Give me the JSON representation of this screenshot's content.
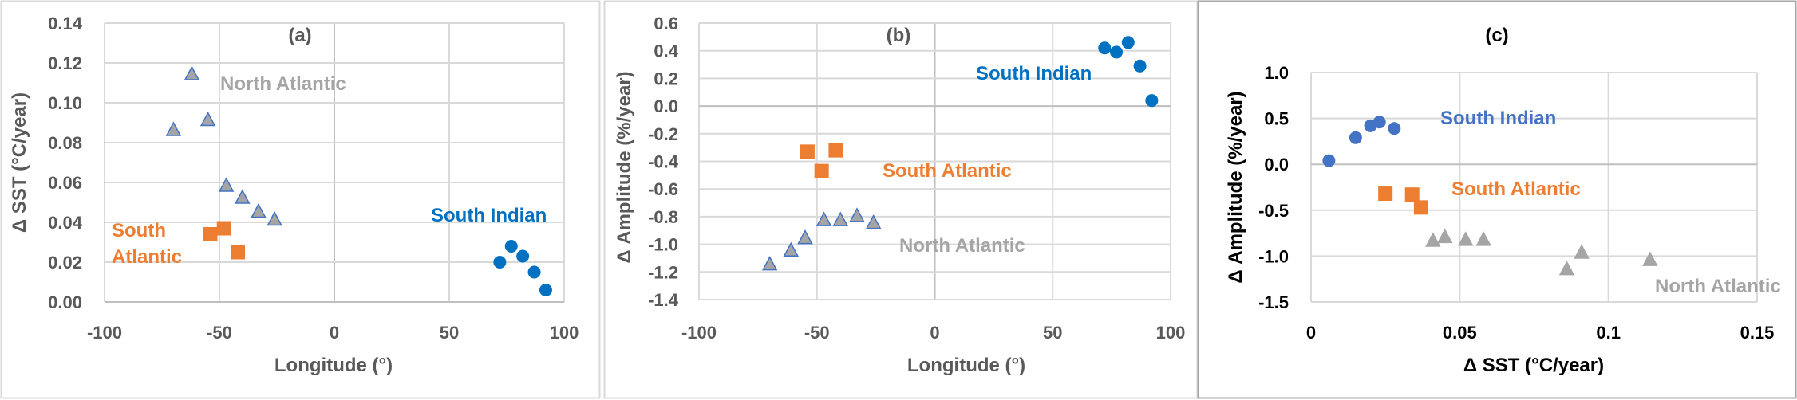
{
  "chart_data": [
    {
      "type": "scatter",
      "title": "(a)",
      "xlabel": "Longitude (°)",
      "ylabel": "Δ SST (°C/year)",
      "xlim": [
        -100,
        100
      ],
      "ylim": [
        0,
        0.14
      ],
      "grid": true,
      "xticks": [
        -100,
        -50,
        0,
        50,
        100
      ],
      "xtick_labels": [
        "-100",
        "-50",
        "0",
        "50",
        "100"
      ],
      "yticks": [
        0,
        0.02,
        0.04,
        0.06,
        0.08,
        0.1,
        0.12,
        0.14
      ],
      "ytick_labels": [
        "0.00",
        "0.02",
        "0.04",
        "0.06",
        "0.08",
        "0.10",
        "0.12",
        "0.14"
      ],
      "series": [
        {
          "name": "North Atlantic",
          "marker": "triangle",
          "color": "#a5a5a5",
          "edge": "#4472c4",
          "x": [
            -62,
            -70,
            -55,
            -47,
            -40,
            -33,
            -26
          ],
          "y": [
            0.114,
            0.086,
            0.091,
            0.058,
            0.052,
            0.045,
            0.041
          ]
        },
        {
          "name": "South Atlantic",
          "marker": "square",
          "color": "#ed7d31",
          "edge": "#ed7d31",
          "x": [
            -54,
            -48,
            -42
          ],
          "y": [
            0.034,
            0.037,
            0.025
          ]
        },
        {
          "name": "South Indian",
          "marker": "circle",
          "color": "#0070c0",
          "edge": "#0070c0",
          "x": [
            72,
            77,
            82,
            87,
            92
          ],
          "y": [
            0.02,
            0.028,
            0.023,
            0.015,
            0.006
          ]
        }
      ],
      "annotations": [
        {
          "text": "North Atlantic",
          "color": "#a5a5a5"
        },
        {
          "text": "South",
          "color": "#ed7d31"
        },
        {
          "text": "Atlantic",
          "color": "#ed7d31"
        },
        {
          "text": "South Indian",
          "color": "#0070c0"
        }
      ]
    },
    {
      "type": "scatter",
      "title": "(b)",
      "xlabel": "Longitude (°)",
      "ylabel": "Δ Amplitude (%/year)",
      "xlim": [
        -100,
        100
      ],
      "ylim": [
        -1.4,
        0.6
      ],
      "grid": true,
      "xticks": [
        -100,
        -50,
        0,
        50,
        100
      ],
      "xtick_labels": [
        "-100",
        "-50",
        "0",
        "50",
        "100"
      ],
      "yticks": [
        -1.4,
        -1.2,
        -1.0,
        -0.8,
        -0.6,
        -0.4,
        -0.2,
        0,
        0.2,
        0.4,
        0.6
      ],
      "ytick_labels": [
        "-1.4",
        "-1.2",
        "-1.0",
        "-0.8",
        "-0.6",
        "-0.4",
        "-0.2",
        "0.0",
        "0.2",
        "0.4",
        "0.6"
      ],
      "series": [
        {
          "name": "North Atlantic",
          "marker": "triangle",
          "color": "#a5a5a5",
          "edge": "#4472c4",
          "x": [
            -70,
            -61,
            -55,
            -47,
            -40,
            -33,
            -26
          ],
          "y": [
            -1.15,
            -1.05,
            -0.96,
            -0.83,
            -0.83,
            -0.8,
            -0.85
          ]
        },
        {
          "name": "South Atlantic",
          "marker": "square",
          "color": "#ed7d31",
          "edge": "#ed7d31",
          "x": [
            -54,
            -48,
            -42
          ],
          "y": [
            -0.33,
            -0.47,
            -0.32
          ]
        },
        {
          "name": "South Indian",
          "marker": "circle",
          "color": "#0070c0",
          "edge": "#0070c0",
          "x": [
            72,
            77,
            82,
            87,
            92
          ],
          "y": [
            0.42,
            0.39,
            0.46,
            0.29,
            0.04
          ]
        }
      ],
      "annotations": [
        {
          "text": "South Indian",
          "color": "#0070c0"
        },
        {
          "text": "South Atlantic",
          "color": "#ed7d31"
        },
        {
          "text": "North Atlantic",
          "color": "#a5a5a5"
        }
      ]
    },
    {
      "type": "scatter",
      "title": "(c)",
      "xlabel": "Δ SST (°C/year)",
      "ylabel": "Δ Amplitude (%/year)",
      "xlim": [
        0,
        0.15
      ],
      "ylim": [
        -1.5,
        1.0
      ],
      "grid": true,
      "xticks": [
        0,
        0.05,
        0.1,
        0.15
      ],
      "xtick_labels": [
        "0",
        "0.05",
        "0.1",
        "0.15"
      ],
      "yticks": [
        -1.5,
        -1.0,
        -0.5,
        0,
        0.5,
        1.0
      ],
      "ytick_labels": [
        "-1.5",
        "-1.0",
        "-0.5",
        "0.0",
        "0.5",
        "1.0"
      ],
      "series": [
        {
          "name": "South Indian",
          "marker": "circle",
          "color": "#4472c4",
          "edge": "#4472c4",
          "x": [
            0.006,
            0.015,
            0.02,
            0.023,
            0.028
          ],
          "y": [
            0.04,
            0.29,
            0.42,
            0.46,
            0.39
          ]
        },
        {
          "name": "South Atlantic",
          "marker": "square",
          "color": "#ed7d31",
          "edge": "#ed7d31",
          "x": [
            0.025,
            0.034,
            0.037
          ],
          "y": [
            -0.32,
            -0.33,
            -0.47
          ]
        },
        {
          "name": "North Atlantic",
          "marker": "triangle",
          "color": "#a5a5a5",
          "edge": "#a5a5a5",
          "x": [
            0.041,
            0.045,
            0.052,
            0.058,
            0.086,
            0.091,
            0.114
          ],
          "y": [
            -0.84,
            -0.8,
            -0.83,
            -0.83,
            -1.15,
            -0.97,
            -1.05
          ]
        }
      ],
      "annotations": [
        {
          "text": "South Indian",
          "color": "#4472c4"
        },
        {
          "text": "South Atlantic",
          "color": "#ed7d31"
        },
        {
          "text": "North Atlantic",
          "color": "#a5a5a5"
        }
      ]
    }
  ]
}
